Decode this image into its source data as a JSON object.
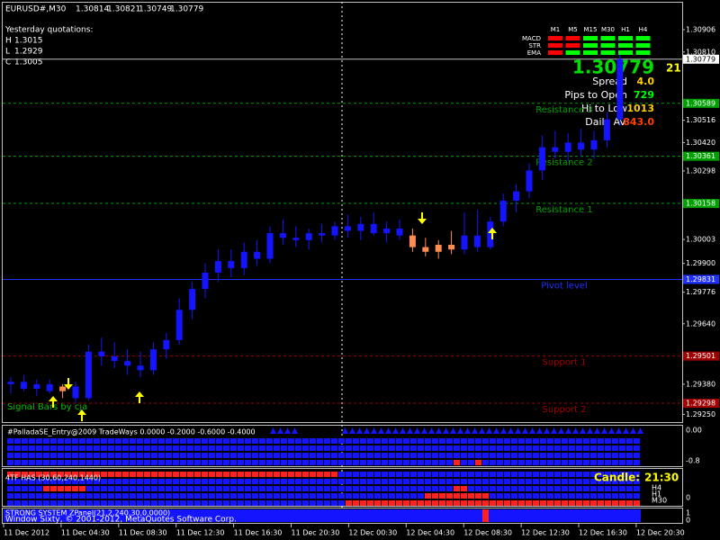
{
  "header": {
    "symbol": "EURUSD#,M30",
    "open": 1.30814,
    "high": 1.30821,
    "low": 1.30749,
    "close": 1.30779
  },
  "yesterday": {
    "title": "Yesterday quotations:",
    "high_label": "H",
    "high": 1.3015,
    "low_label": "L",
    "low": 1.2929,
    "close_label": "C",
    "close": 1.3005
  },
  "signal_table": {
    "columns": [
      "M1",
      "M5",
      "M15",
      "M30",
      "H1",
      "H4"
    ],
    "rows": [
      {
        "name": "MACD",
        "colors": [
          "#ff0000",
          "#ff0000",
          "#00ff00",
          "#00ff00",
          "#00ff00",
          "#00ff00"
        ]
      },
      {
        "name": "STR",
        "colors": [
          "#ff0000",
          "#ff0000",
          "#00ff00",
          "#00ff00",
          "#00ff00",
          "#00ff00"
        ]
      },
      {
        "name": "EMA",
        "colors": [
          "#ff0000",
          "#00ff00",
          "#00ff00",
          "#00ff00",
          "#00ff00",
          "#00ff00"
        ]
      }
    ]
  },
  "info": {
    "bars": "21",
    "spread_label": "Spread",
    "spread": "4.0",
    "pips_label": "Pips to Open",
    "pips": "729",
    "range_label": "Hi to Low",
    "range": "1013",
    "avg_label": "Daily Av",
    "avg": "843.0"
  },
  "signal_bars_label": "Signal Bars by cja",
  "price_chart": {
    "type": "candlestick",
    "ylim": [
      1.29213,
      1.31026
    ],
    "yticks": [
      1.30906,
      {
        "value": 1.3081,
        "label": "1.30810"
      },
      1.30516,
      {
        "value": 1.3042,
        "label": "1.30420"
      },
      1.30298,
      1.30003,
      {
        "value": 1.299,
        "label": "1.29900"
      },
      1.29776,
      {
        "value": 1.2964,
        "label": "1.29640"
      },
      {
        "value": 1.2938,
        "label": "1.29380"
      },
      {
        "value": 1.2925,
        "label": "1.29250"
      }
    ],
    "current_price": 1.30779,
    "levels": [
      {
        "label": "Resistance 3",
        "value": 1.30589,
        "color": "#00a000"
      },
      {
        "label": "Resistance 2",
        "value": 1.30361,
        "color": "#00a000"
      },
      {
        "label": "Resistance 1",
        "value": 1.30158,
        "color": "#00a000"
      },
      {
        "label": "Pivot level",
        "value": 1.29831,
        "color": "#2030ff"
      },
      {
        "label": "Support 1",
        "value": 1.29501,
        "color": "#a00000"
      },
      {
        "label": "Support 2",
        "value": 1.29298,
        "color": "#a00000"
      }
    ],
    "candles": [
      [
        1.2938,
        1.2941,
        1.2934,
        1.2939
      ],
      [
        1.2939,
        1.2942,
        1.2935,
        1.2936
      ],
      [
        1.2936,
        1.294,
        1.2933,
        1.2938
      ],
      [
        1.2938,
        1.294,
        1.2934,
        1.2935
      ],
      [
        1.2935,
        1.2938,
        1.2932,
        1.2937
      ],
      [
        1.2937,
        1.2939,
        1.293,
        1.2932
      ],
      [
        1.2932,
        1.2955,
        1.2931,
        1.2952
      ],
      [
        1.2952,
        1.2958,
        1.2946,
        1.295
      ],
      [
        1.295,
        1.2956,
        1.2945,
        1.2948
      ],
      [
        1.2948,
        1.2953,
        1.2942,
        1.2946
      ],
      [
        1.2946,
        1.2952,
        1.2941,
        1.2944
      ],
      [
        1.2944,
        1.2956,
        1.2942,
        1.2953
      ],
      [
        1.2953,
        1.296,
        1.2949,
        1.2957
      ],
      [
        1.2957,
        1.2975,
        1.2955,
        1.297
      ],
      [
        1.297,
        1.2982,
        1.2966,
        1.2979
      ],
      [
        1.2979,
        1.299,
        1.2975,
        1.2986
      ],
      [
        1.2986,
        1.2996,
        1.2982,
        1.2991
      ],
      [
        1.2991,
        1.2996,
        1.2984,
        1.2988
      ],
      [
        1.2988,
        1.2999,
        1.2985,
        1.2995
      ],
      [
        1.2995,
        1.3,
        1.2989,
        1.2992
      ],
      [
        1.2992,
        1.3006,
        1.299,
        1.3003
      ],
      [
        1.3003,
        1.3009,
        1.2998,
        1.3001
      ],
      [
        1.3001,
        1.3006,
        1.2997,
        1.3
      ],
      [
        1.3,
        1.3005,
        1.2996,
        1.3003
      ],
      [
        1.3003,
        1.3007,
        1.2999,
        1.3002
      ],
      [
        1.3002,
        1.3008,
        1.3,
        1.3006
      ],
      [
        1.3006,
        1.3011,
        1.3001,
        1.3004
      ],
      [
        1.3004,
        1.301,
        1.3,
        1.3007
      ],
      [
        1.3007,
        1.3012,
        1.3002,
        1.3003
      ],
      [
        1.3003,
        1.3008,
        1.2999,
        1.3005
      ],
      [
        1.3005,
        1.3009,
        1.3,
        1.3002
      ],
      [
        1.3002,
        1.3005,
        1.2995,
        1.2997
      ],
      [
        1.2997,
        1.3001,
        1.2993,
        1.2995
      ],
      [
        1.2995,
        1.3,
        1.2992,
        1.2998
      ],
      [
        1.2998,
        1.3004,
        1.2994,
        1.2996
      ],
      [
        1.2996,
        1.3012,
        1.2994,
        1.3002
      ],
      [
        1.3002,
        1.3013,
        1.2995,
        1.2997
      ],
      [
        1.2997,
        1.301,
        1.2996,
        1.3008
      ],
      [
        1.3008,
        1.302,
        1.3006,
        1.3017
      ],
      [
        1.3017,
        1.3024,
        1.3012,
        1.3021
      ],
      [
        1.3021,
        1.3033,
        1.3018,
        1.303
      ],
      [
        1.303,
        1.3045,
        1.3026,
        1.304
      ],
      [
        1.304,
        1.3047,
        1.3035,
        1.3038
      ],
      [
        1.3038,
        1.3046,
        1.3034,
        1.3042
      ],
      [
        1.3042,
        1.3048,
        1.3036,
        1.3039
      ],
      [
        1.3039,
        1.3047,
        1.3035,
        1.3043
      ],
      [
        1.3043,
        1.3055,
        1.304,
        1.3052
      ],
      [
        1.3052,
        1.308,
        1.3049,
        1.30779
      ]
    ],
    "candle_colors": [
      "#1414ff",
      "#1414ff",
      "#1414ff",
      "#1414ff",
      "#ff8c50",
      "#1414ff",
      "#1414ff",
      "#1414ff",
      "#1414ff",
      "#1414ff",
      "#1414ff",
      "#1414ff",
      "#1414ff",
      "#1414ff",
      "#1414ff",
      "#1414ff",
      "#1414ff",
      "#1414ff",
      "#1414ff",
      "#1414ff",
      "#1414ff",
      "#1414ff",
      "#1414ff",
      "#1414ff",
      "#1414ff",
      "#1414ff",
      "#1414ff",
      "#1414ff",
      "#1414ff",
      "#1414ff",
      "#1414ff",
      "#ff8c50",
      "#ff8c50",
      "#ff8c50",
      "#ff8c50",
      "#1414ff",
      "#1414ff",
      "#1414ff",
      "#1414ff",
      "#1414ff",
      "#1414ff",
      "#1414ff",
      "#1414ff",
      "#1414ff",
      "#1414ff",
      "#1414ff",
      "#1414ff",
      "#1414ff"
    ],
    "times": [
      "11 Dec 2012",
      "11 Dec 04:30",
      "11 Dec 08:30",
      "11 Dec 12:30",
      "11 Dec 16:30",
      "11 Dec 20:30",
      "12 Dec 00:30",
      "12 Dec 04:30",
      "12 Dec 08:30",
      "12 Dec 12:30",
      "12 Dec 16:30",
      "12 Dec 20:30"
    ]
  },
  "panel1": {
    "title": "#PalladaSE_Entry@2009 TradeWays 0.0000 -0.2000 -0.6000 -0.4000",
    "top_label": "0.00",
    "bottom_label": "-0.8"
  },
  "panel2": {
    "title": "4TF HAS (30,60,240,1440)",
    "candle_label": "Candle:",
    "candle_time": "21:30",
    "row_labels": [
      "H4",
      "H1",
      "M30"
    ],
    "zero_label": "0"
  },
  "panel3": {
    "title": "STRONG SYSTEM ZPanel(21,2,240,30,0.0000)",
    "copyright": "Window Sixty, © 2001-2012, MetaQuotes Software Corp.",
    "top_label": "1",
    "bottom_label": "0"
  }
}
